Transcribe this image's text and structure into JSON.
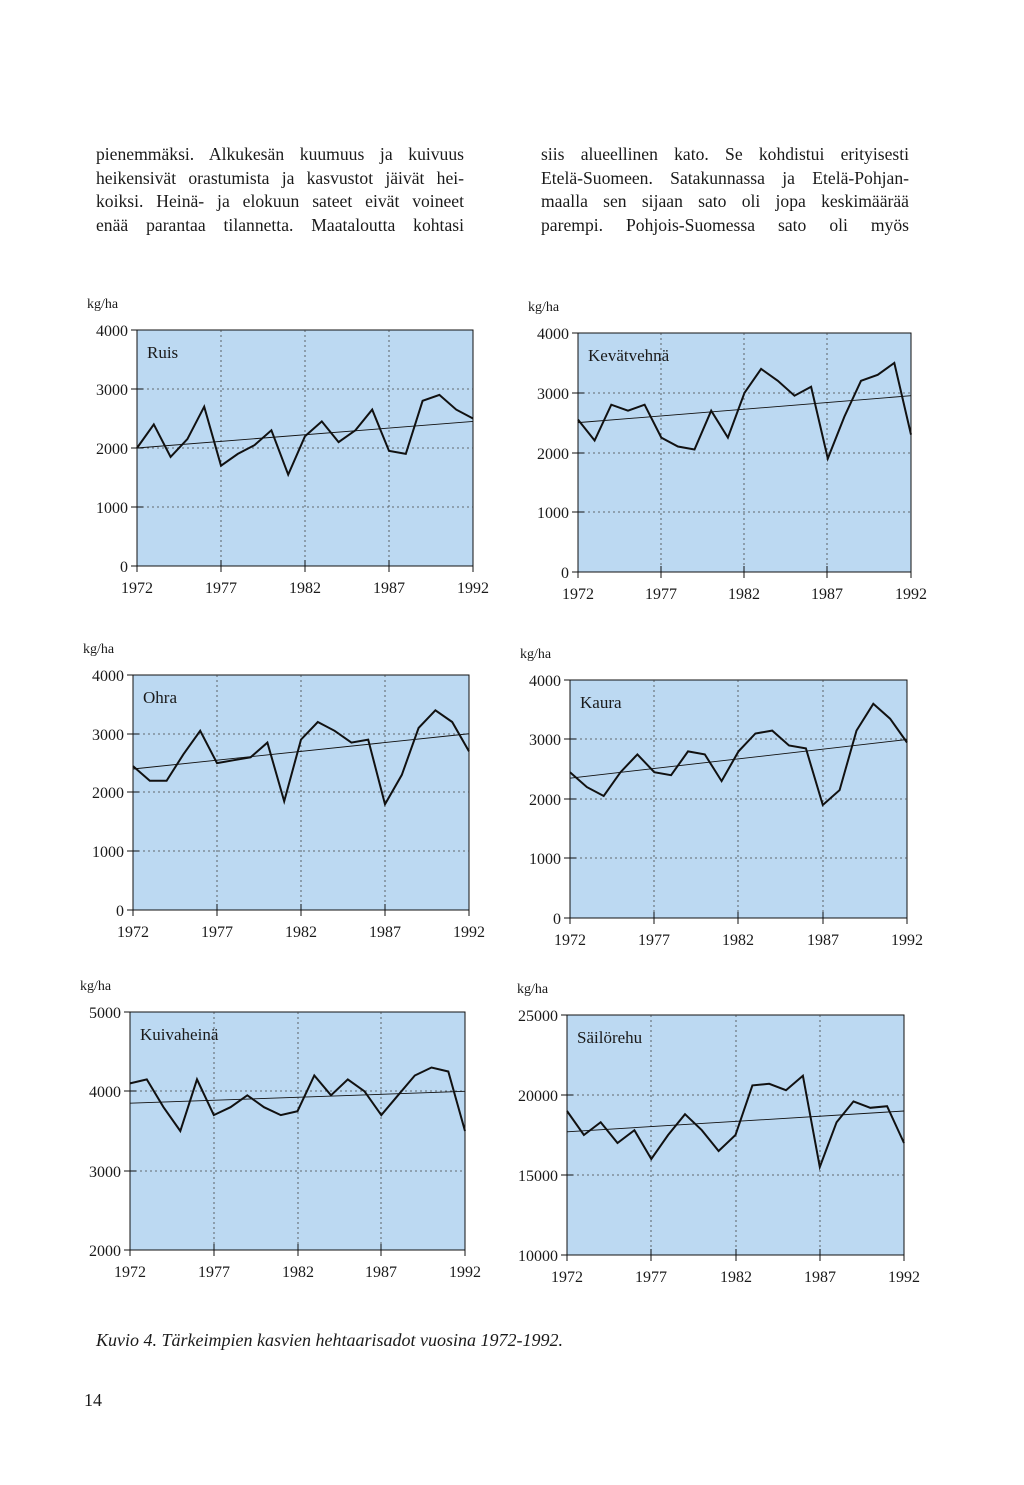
{
  "text": {
    "left": [
      "pienemmäksi. Alkukesän kuumuus ja kuivuus",
      "heikensivät orastumista ja kasvustot jäivät hei-",
      "koiksi. Heinä- ja elokuun sateet eivät voineet",
      "enää parantaa tilannetta. Maataloutta kohtasi"
    ],
    "right": [
      "siis alueellinen kato. Se kohdistui erityisesti",
      "Etelä-Suomeen. Satakunnassa ja Etelä-Pohjan-",
      "maalla sen sijaan sato oli jopa keskimäärää",
      "parempi. Pohjois-Suomessa sato oli myös"
    ]
  },
  "caption": "Kuvio 4. Tärkeimpien kasvien hehtaarisadot vuosina 1972-1992.",
  "page_number": "14",
  "colors": {
    "plot_fill": "#bcd9f2",
    "line": "#111111",
    "grid": "#444444"
  },
  "chart_data": [
    {
      "type": "line",
      "title": "Ruis",
      "ylabel": "kg/ha",
      "ylim": [
        0,
        4000
      ],
      "yticks": [
        "0",
        "1000",
        "2000",
        "3000",
        "4000"
      ],
      "xlim": [
        1972,
        1992
      ],
      "xticks": [
        "1972",
        "1977",
        "1982",
        "1987",
        "1992"
      ],
      "grid": true,
      "trend_line": [
        2000,
        2450
      ],
      "x": [
        1972,
        1973,
        1974,
        1975,
        1976,
        1977,
        1978,
        1979,
        1980,
        1981,
        1982,
        1983,
        1984,
        1985,
        1986,
        1987,
        1988,
        1989,
        1990,
        1991,
        1992
      ],
      "values": [
        2000,
        2400,
        1850,
        2150,
        2700,
        1700,
        1900,
        2050,
        2300,
        1550,
        2200,
        2450,
        2100,
        2300,
        2650,
        1950,
        1900,
        2800,
        2900,
        2650,
        2500
      ]
    },
    {
      "type": "line",
      "title": "Kevätvehnä",
      "ylabel": "kg/ha",
      "ylim": [
        0,
        4000
      ],
      "yticks": [
        "0",
        "1000",
        "2000",
        "3000",
        "4000"
      ],
      "xlim": [
        1972,
        1992
      ],
      "xticks": [
        "1972",
        "1977",
        "1982",
        "1987",
        "1992"
      ],
      "grid": true,
      "trend_line": [
        2500,
        2950
      ],
      "x": [
        1972,
        1973,
        1974,
        1975,
        1976,
        1977,
        1978,
        1979,
        1980,
        1981,
        1982,
        1983,
        1984,
        1985,
        1986,
        1987,
        1988,
        1989,
        1990,
        1991,
        1992
      ],
      "values": [
        2550,
        2200,
        2800,
        2700,
        2800,
        2250,
        2100,
        2050,
        2700,
        2250,
        3000,
        3400,
        3200,
        2950,
        3100,
        1900,
        2600,
        3200,
        3300,
        3500,
        2300
      ]
    },
    {
      "type": "line",
      "title": "Ohra",
      "ylabel": "kg/ha",
      "ylim": [
        0,
        4000
      ],
      "yticks": [
        "0",
        "1000",
        "2000",
        "3000",
        "4000"
      ],
      "xlim": [
        1972,
        1992
      ],
      "xticks": [
        "1972",
        "1977",
        "1982",
        "1987",
        "1992"
      ],
      "grid": true,
      "trend_line": [
        2400,
        3000
      ],
      "x": [
        1972,
        1973,
        1974,
        1975,
        1976,
        1977,
        1978,
        1979,
        1980,
        1981,
        1982,
        1983,
        1984,
        1985,
        1986,
        1987,
        1988,
        1989,
        1990,
        1991,
        1992
      ],
      "values": [
        2450,
        2200,
        2200,
        2650,
        3050,
        2500,
        2550,
        2600,
        2850,
        1850,
        2900,
        3200,
        3050,
        2850,
        2900,
        1800,
        2300,
        3100,
        3400,
        3200,
        2700
      ]
    },
    {
      "type": "line",
      "title": "Kaura",
      "ylabel": "kg/ha",
      "ylim": [
        0,
        4000
      ],
      "yticks": [
        "0",
        "1000",
        "2000",
        "3000",
        "4000"
      ],
      "xlim": [
        1972,
        1992
      ],
      "xticks": [
        "1972",
        "1977",
        "1982",
        "1987",
        "1992"
      ],
      "grid": true,
      "trend_line": [
        2350,
        3000
      ],
      "x": [
        1972,
        1973,
        1974,
        1975,
        1976,
        1977,
        1978,
        1979,
        1980,
        1981,
        1982,
        1983,
        1984,
        1985,
        1986,
        1987,
        1988,
        1989,
        1990,
        1991,
        1992
      ],
      "values": [
        2450,
        2200,
        2050,
        2450,
        2750,
        2450,
        2400,
        2800,
        2750,
        2300,
        2800,
        3100,
        3150,
        2900,
        2850,
        1900,
        2150,
        3150,
        3600,
        3350,
        2950
      ]
    },
    {
      "type": "line",
      "title": "Kuivaheinä",
      "ylabel": "kg/ha",
      "ylim": [
        2000,
        5000
      ],
      "yticks": [
        "2000",
        "3000",
        "4000",
        "5000"
      ],
      "xlim": [
        1972,
        1992
      ],
      "xticks": [
        "1972",
        "1977",
        "1982",
        "1987",
        "1992"
      ],
      "grid": true,
      "trend_line": [
        3850,
        4000
      ],
      "x": [
        1972,
        1973,
        1974,
        1975,
        1976,
        1977,
        1978,
        1979,
        1980,
        1981,
        1982,
        1983,
        1984,
        1985,
        1986,
        1987,
        1988,
        1989,
        1990,
        1991,
        1992
      ],
      "values": [
        4100,
        4150,
        3800,
        3500,
        4150,
        3700,
        3800,
        3950,
        3800,
        3700,
        3750,
        4200,
        3950,
        4150,
        4000,
        3700,
        3950,
        4200,
        4300,
        4250,
        3500
      ]
    },
    {
      "type": "line",
      "title": "Säilörehu",
      "ylabel": "kg/ha",
      "ylim": [
        10000,
        25000
      ],
      "yticks": [
        "10000",
        "15000",
        "20000",
        "25000"
      ],
      "xlim": [
        1972,
        1992
      ],
      "xticks": [
        "1972",
        "1977",
        "1982",
        "1987",
        "1992"
      ],
      "grid": true,
      "trend_line": [
        17700,
        19000
      ],
      "x": [
        1972,
        1973,
        1974,
        1975,
        1976,
        1977,
        1978,
        1979,
        1980,
        1981,
        1982,
        1983,
        1984,
        1985,
        1986,
        1987,
        1988,
        1989,
        1990,
        1991,
        1992
      ],
      "values": [
        19000,
        17500,
        18300,
        17000,
        17800,
        16000,
        17500,
        18800,
        17800,
        16500,
        17500,
        20600,
        20700,
        20300,
        21200,
        15500,
        18300,
        19600,
        19200,
        19300,
        17000
      ]
    }
  ]
}
